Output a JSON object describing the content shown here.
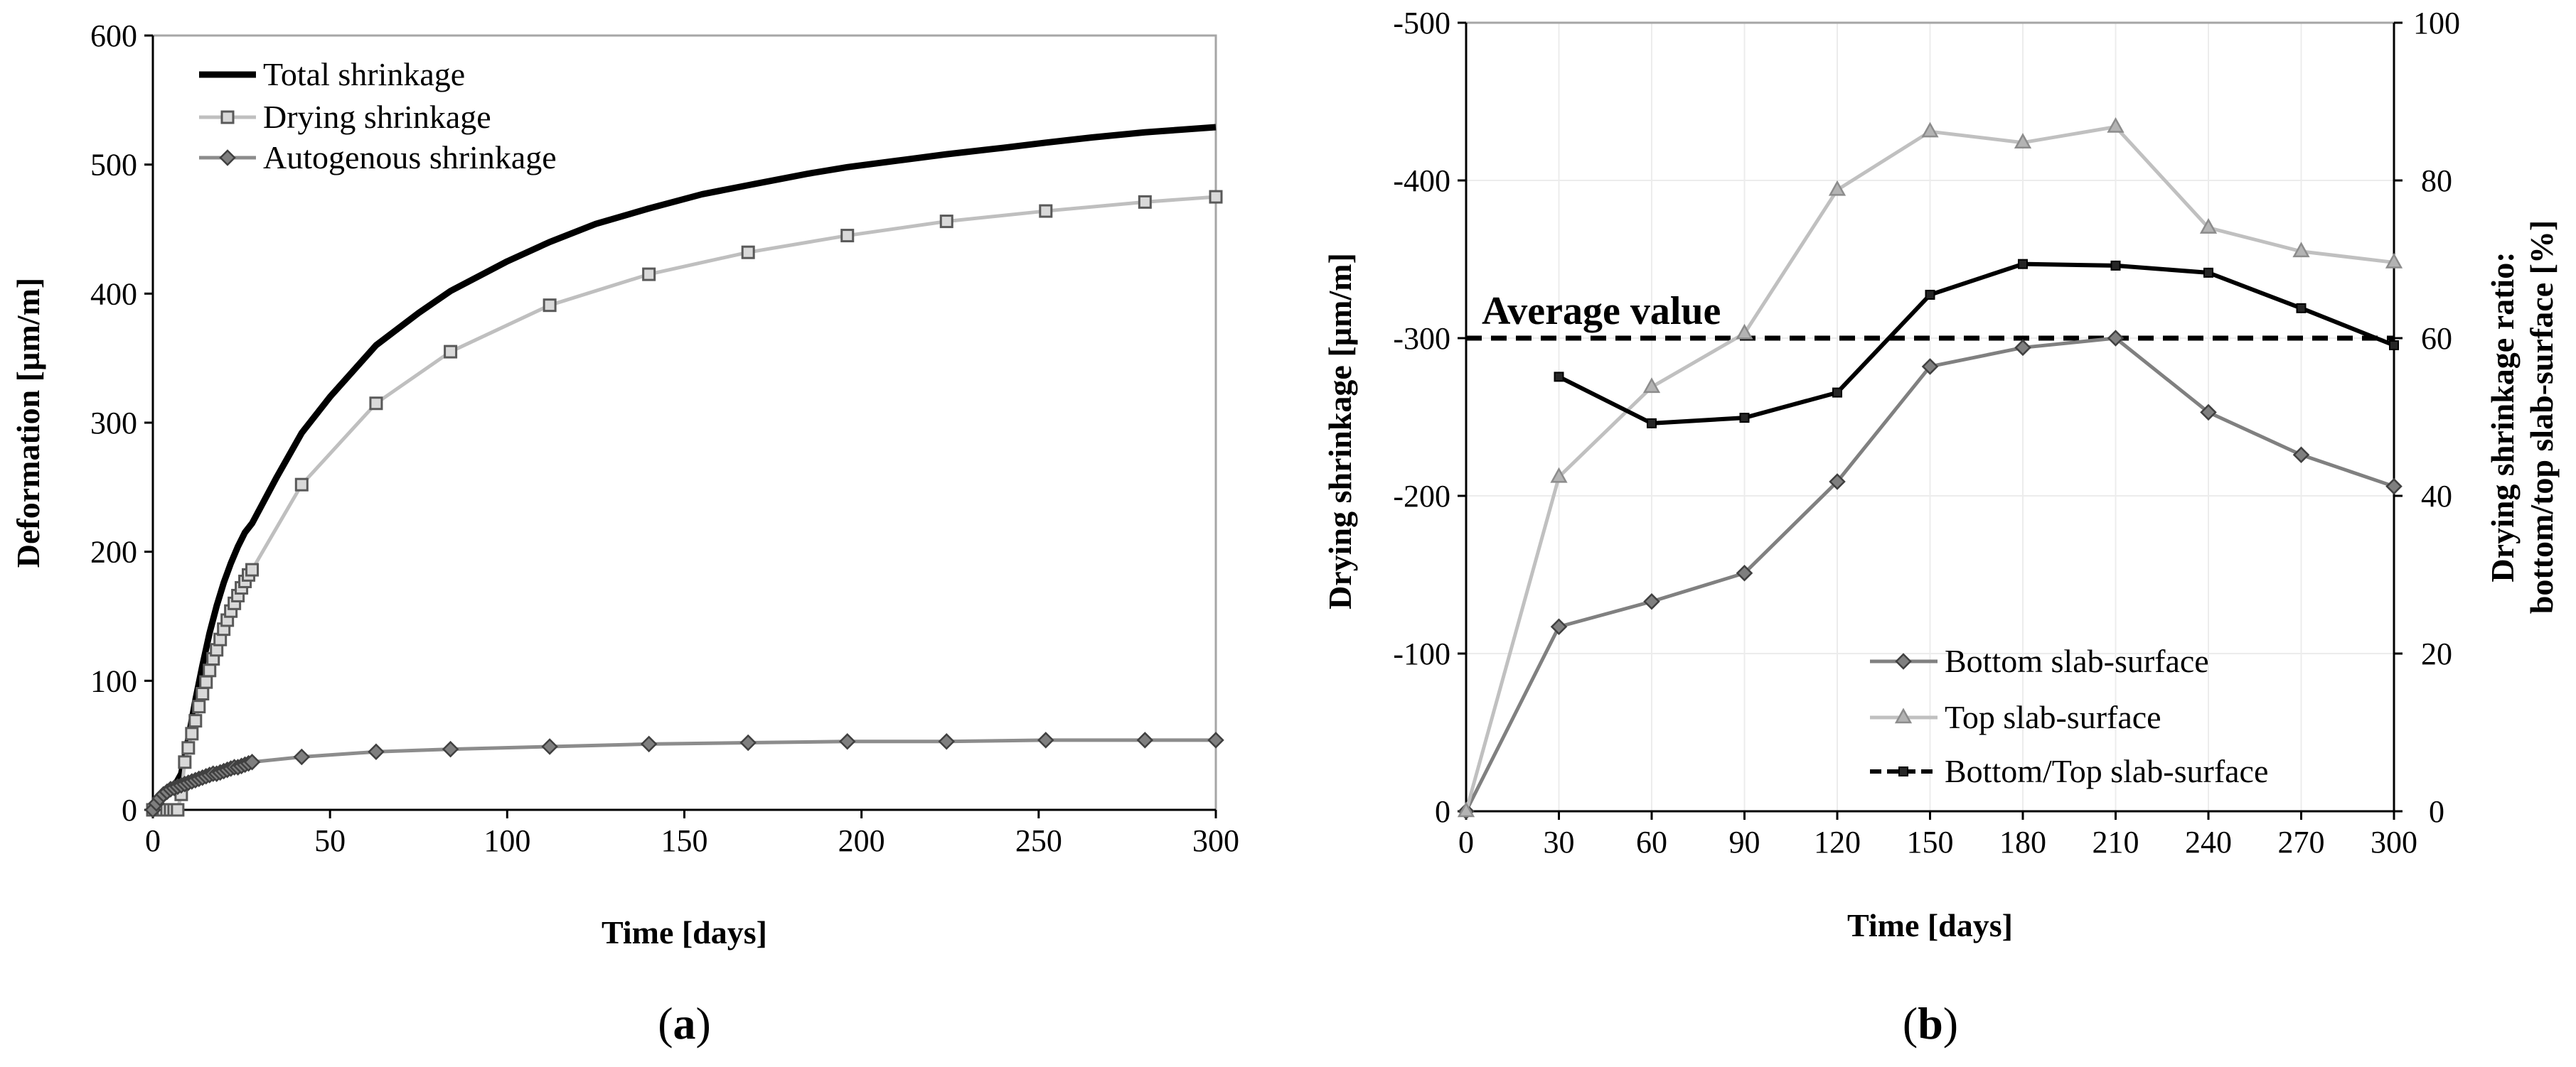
{
  "chart_data": [
    {
      "type": "line",
      "caption": {
        "open": "(",
        "letter": "a",
        "close": ")"
      },
      "xlabel": "Time [days]",
      "ylabel": "Deformation [µm/m]",
      "xlim": [
        0,
        300
      ],
      "ylim": [
        0,
        600
      ],
      "xticks": [
        0,
        50,
        100,
        150,
        200,
        250,
        300
      ],
      "yticks": [
        0,
        100,
        200,
        300,
        400,
        500,
        600
      ],
      "grid": false,
      "legend_position": "top-left",
      "series": [
        {
          "name": "Total shrinkage",
          "color": "#000000",
          "marker": "none",
          "x": [
            0,
            2,
            4,
            6,
            8,
            10,
            12,
            14,
            16,
            18,
            20,
            22,
            24,
            26,
            28,
            35,
            42,
            50,
            63,
            75,
            84,
            100,
            112,
            125,
            140,
            155,
            168,
            185,
            196,
            210,
            224,
            240,
            252,
            265,
            280,
            290,
            300
          ],
          "y": [
            0,
            8,
            14,
            18,
            28,
            55,
            85,
            112,
            137,
            158,
            176,
            191,
            204,
            215,
            222,
            258,
            292,
            320,
            360,
            385,
            402,
            425,
            440,
            454,
            466,
            477,
            484,
            493,
            498,
            503,
            508,
            513,
            517,
            521,
            525,
            527,
            529
          ]
        },
        {
          "name": "Drying shrinkage",
          "color": "#bfbfbf",
          "marker": "square",
          "x": [
            0,
            1,
            2,
            3,
            4,
            5,
            6,
            7,
            8,
            9,
            10,
            11,
            12,
            13,
            14,
            15,
            16,
            17,
            18,
            19,
            20,
            21,
            22,
            23,
            24,
            25,
            26,
            27,
            28,
            42,
            63,
            84,
            112,
            140,
            168,
            196,
            224,
            252,
            280,
            300
          ],
          "y": [
            0,
            0,
            0,
            0,
            0,
            0,
            0,
            0,
            12,
            37,
            48,
            59,
            69,
            80,
            90,
            99,
            108,
            117,
            124,
            132,
            140,
            147,
            154,
            160,
            166,
            172,
            177,
            182,
            186,
            252,
            315,
            355,
            391,
            415,
            432,
            445,
            456,
            464,
            471,
            475
          ]
        },
        {
          "name": "Autogenous shrinkage",
          "color": "#8c8c8c",
          "marker": "diamond",
          "x": [
            0,
            1,
            2,
            3,
            4,
            5,
            6,
            7,
            8,
            9,
            10,
            11,
            12,
            13,
            14,
            15,
            16,
            17,
            18,
            19,
            20,
            21,
            22,
            23,
            24,
            25,
            26,
            27,
            28,
            42,
            63,
            84,
            112,
            140,
            168,
            196,
            224,
            252,
            280,
            300
          ],
          "y": [
            0,
            5,
            9,
            12,
            14,
            16,
            17,
            18,
            19,
            20,
            21,
            22,
            23,
            24,
            25,
            26,
            27,
            28,
            28,
            29,
            30,
            31,
            32,
            33,
            33,
            34,
            35,
            36,
            37,
            41,
            45,
            47,
            49,
            51,
            52,
            53,
            53,
            54,
            54,
            54
          ]
        }
      ]
    },
    {
      "type": "line",
      "caption": {
        "open": "(",
        "letter": "b",
        "close": ")"
      },
      "xlabel": "Time [days]",
      "ylabel": "Drying shrinkage [µm/m]",
      "y2label": "Drying shrinkage ratio:",
      "y2label_line2": "bottom/top slab-surface [%]",
      "xlim": [
        0,
        300
      ],
      "ylim": [
        -500,
        0
      ],
      "y_inverted": true,
      "y2lim": [
        0,
        100
      ],
      "xticks": [
        0,
        30,
        60,
        90,
        120,
        150,
        180,
        210,
        240,
        270,
        300
      ],
      "yticks": [
        0,
        -100,
        -200,
        -300,
        -400,
        -500
      ],
      "y2ticks": [
        0,
        20,
        40,
        60,
        80,
        100
      ],
      "grid": true,
      "legend_position": "bottom-right",
      "annotation": {
        "text": "Average value",
        "y2": 60
      },
      "series": [
        {
          "name": "Bottom slab-surface",
          "color": "#808080",
          "marker": "diamond",
          "axis": "left",
          "x": [
            0,
            30,
            60,
            90,
            120,
            150,
            180,
            210,
            240,
            270,
            300
          ],
          "y": [
            0,
            -117,
            -133,
            -151,
            -209,
            -282,
            -294,
            -300,
            -253,
            -226,
            -206
          ]
        },
        {
          "name": "Top slab-surface",
          "color": "#c0c0c0",
          "marker": "triangle",
          "axis": "left",
          "x": [
            0,
            30,
            60,
            90,
            120,
            150,
            180,
            210,
            240,
            270,
            300
          ],
          "y": [
            0,
            -212,
            -269,
            -303,
            -394,
            -431,
            -424,
            -434,
            -370,
            -355,
            -348
          ]
        },
        {
          "name": "Bottom/Top slab-surface",
          "color": "#000000",
          "marker": "small-square",
          "axis": "right",
          "x": [
            30,
            60,
            90,
            120,
            150,
            180,
            210,
            240,
            270,
            300
          ],
          "y": [
            55.1,
            49.2,
            49.9,
            53.1,
            65.5,
            69.4,
            69.2,
            68.3,
            63.8,
            59.1
          ]
        }
      ]
    }
  ]
}
